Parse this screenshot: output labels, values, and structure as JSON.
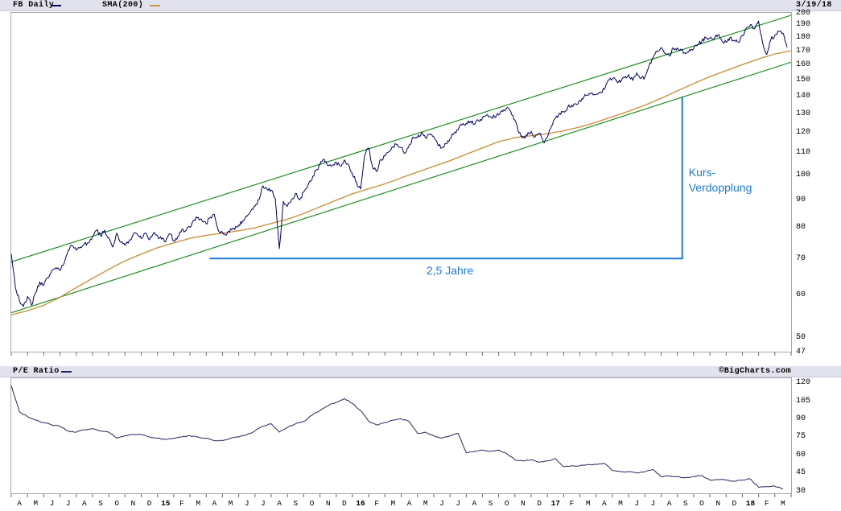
{
  "header": {
    "symbol_label": "FB Daily",
    "sma_label": "SMA(200)",
    "date": "3/19/18"
  },
  "pe_header": {
    "label": "P/E Ratio",
    "copyright": "©BigCharts.com"
  },
  "colors": {
    "price_line": "#000066",
    "sma_line": "#cc9440",
    "pe_line": "#26265e",
    "channel_green": "#1f8f1f",
    "annotation_blue": "#1e7dd7",
    "header_bg": "#e2e2ee",
    "tick": "#666666"
  },
  "chart_data": [
    {
      "type": "line",
      "title": "FB Daily price with SMA(200), log scale",
      "y_scale": "log",
      "ylim": [
        47,
        200
      ],
      "y_ticks": [
        200,
        190,
        180,
        170,
        160,
        150,
        140,
        130,
        120,
        110,
        100,
        90,
        80,
        70,
        60,
        50,
        47
      ],
      "x_range": "Apr 2014 - Mar 2018",
      "x_labels": [
        "A",
        "M",
        "J",
        "J",
        "A",
        "S",
        "O",
        "N",
        "D",
        "15",
        "F",
        "M",
        "A",
        "M",
        "J",
        "J",
        "A",
        "S",
        "O",
        "N",
        "D",
        "16",
        "F",
        "M",
        "A",
        "M",
        "J",
        "J",
        "A",
        "S",
        "O",
        "N",
        "D",
        "17",
        "F",
        "M",
        "A",
        "M",
        "J",
        "J",
        "A",
        "S",
        "O",
        "N",
        "D",
        "18",
        "F",
        "M"
      ],
      "series": [
        {
          "name": "FB",
          "color": "#000066",
          "points_per_month": 4,
          "values": [
            71.5,
            62.0,
            58.5,
            57.0,
            59.5,
            57.3,
            60.5,
            63.3,
            62.5,
            64.5,
            66.5,
            67.3,
            66.5,
            68.5,
            72.5,
            74.0,
            72.5,
            73.5,
            74.5,
            74.8,
            76.8,
            79.0,
            77.2,
            79.0,
            76.5,
            73.5,
            78.0,
            75.0,
            74.0,
            75.5,
            77.5,
            77.7,
            76.2,
            78.0,
            75.8,
            78.0,
            77.2,
            76.0,
            75.2,
            77.8,
            75.6,
            76.8,
            79.2,
            78.9,
            80.0,
            82.5,
            83.5,
            82.2,
            81.2,
            83.5,
            84.5,
            78.8,
            78.3,
            77.4,
            79.5,
            79.2,
            80.8,
            82.3,
            83.8,
            85.8,
            87.5,
            90.0,
            95.5,
            94.0,
            93.8,
            90.5,
            73.0,
            89.4,
            87.5,
            90.0,
            92.5,
            89.9,
            93.0,
            95.5,
            98.0,
            102.0,
            104.5,
            107.0,
            104.0,
            104.2,
            105.5,
            104.0,
            106.7,
            104.7,
            100.5,
            97.0,
            94.2,
            109.0,
            112.2,
            103.0,
            101.5,
            106.9,
            108.5,
            110.5,
            112.8,
            114.1,
            112.5,
            109.8,
            113.8,
            117.6,
            117.3,
            119.8,
            117.2,
            118.8,
            117.8,
            113.8,
            112.3,
            114.3,
            116.8,
            119.5,
            121.3,
            123.9,
            124.8,
            125.8,
            124.2,
            126.1,
            127.6,
            129.2,
            128.4,
            128.3,
            129.2,
            131.2,
            133.3,
            131.0,
            126.5,
            119.8,
            117.2,
            118.4,
            120.5,
            117.8,
            119.6,
            115.1,
            117.5,
            123.2,
            127.6,
            130.3,
            131.2,
            133.6,
            134.8,
            135.5,
            137.6,
            139.6,
            140.6,
            142.1,
            141.2,
            142.6,
            144.2,
            150.2,
            150.6,
            150.1,
            148.6,
            151.5,
            153.6,
            149.8,
            154.8,
            151.0,
            152.2,
            159.2,
            165.0,
            169.3,
            172.5,
            168.0,
            166.5,
            172.0,
            172.2,
            170.6,
            168.0,
            170.9,
            171.6,
            174.6,
            177.2,
            180.1,
            179.2,
            178.6,
            182.2,
            177.2,
            176.6,
            180.2,
            177.6,
            176.5,
            181.6,
            187.6,
            190.2,
            186.9,
            193.2,
            175.8,
            167.5,
            178.3,
            181.8,
            184.8,
            183.5,
            172.6
          ]
        },
        {
          "name": "SMA(200)",
          "color": "#cc9440",
          "points_per_month": 1,
          "values": [
            55.0,
            56.0,
            57.3,
            59.3,
            61.8,
            64.3,
            66.8,
            69.3,
            71.3,
            73.3,
            74.8,
            76.3,
            77.3,
            78.0,
            78.8,
            79.8,
            81.3,
            82.8,
            84.8,
            87.3,
            89.8,
            92.3,
            94.3,
            96.3,
            98.8,
            101.3,
            103.8,
            106.3,
            109.3,
            112.3,
            115.3,
            117.3,
            118.3,
            119.3,
            120.8,
            122.8,
            125.3,
            128.3,
            131.3,
            134.8,
            138.8,
            143.3,
            147.8,
            152.3,
            156.3,
            160.3,
            164.3,
            167.8,
            170.0
          ]
        }
      ],
      "trend_channel": {
        "color": "#1f8f1f",
        "lower_start_price": 55.5,
        "lower_end_price": 162,
        "upper_start_price": 69,
        "upper_end_price": 198
      },
      "annotation": {
        "color": "#1e7dd7",
        "baseline_price": 70,
        "target_price": 140,
        "start_month": 12.2,
        "end_month": 41.3,
        "label_line1": "Kurs-",
        "label_line2": "Verdopplung",
        "label_price": 104,
        "duration_label": "2,5 Jahre",
        "duration_label_month": 27
      }
    },
    {
      "type": "line",
      "title": "P/E Ratio",
      "y_scale": "linear",
      "ylim": [
        28,
        124
      ],
      "y_ticks": [
        120,
        105,
        90,
        75,
        60,
        45,
        30
      ],
      "series": [
        {
          "name": "P/E",
          "color": "#26265e",
          "points_per_month": 2,
          "values": [
            118,
            96,
            92,
            89,
            87,
            85,
            84,
            80,
            79,
            81,
            82,
            80,
            79,
            74,
            76,
            77,
            77,
            75,
            74,
            73,
            74,
            75,
            76,
            75,
            74,
            72,
            72,
            74,
            75,
            77,
            80,
            84,
            86,
            79,
            83,
            86,
            88,
            93,
            97,
            101,
            104,
            107,
            103,
            97,
            88,
            85,
            87,
            89,
            90,
            88,
            78,
            79,
            76,
            74,
            76,
            78,
            62,
            63,
            64,
            63,
            64,
            61,
            56,
            55,
            56,
            54,
            55,
            57,
            50,
            51,
            51,
            52,
            52,
            53,
            47,
            46,
            46,
            45,
            46,
            48,
            42,
            42.5,
            42,
            41,
            42,
            43,
            39,
            39.5,
            39,
            38,
            39,
            40,
            33,
            33.5,
            34,
            31.5
          ]
        }
      ]
    }
  ]
}
